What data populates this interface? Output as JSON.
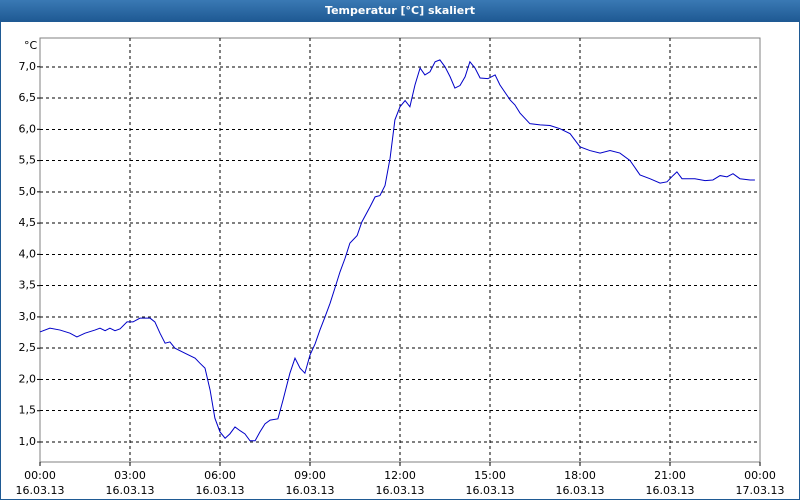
{
  "chart_data": {
    "type": "line",
    "title": "Temperatur [°C] skaliert",
    "y_unit": "°C",
    "xlim": [
      0,
      24
    ],
    "xticks": [
      {
        "value": 0,
        "label": "00:00"
      },
      {
        "value": 3,
        "label": "03:00"
      },
      {
        "value": 6,
        "label": "06:00"
      },
      {
        "value": 9,
        "label": "09:00"
      },
      {
        "value": 12,
        "label": "12:00"
      },
      {
        "value": 15,
        "label": "15:00"
      },
      {
        "value": 18,
        "label": "18:00"
      },
      {
        "value": 21,
        "label": "21:00"
      },
      {
        "value": 24,
        "label": "00:00"
      }
    ],
    "xtick_dates": [
      "16.03.13",
      "16.03.13",
      "16.03.13",
      "16.03.13",
      "16.03.13",
      "16.03.13",
      "16.03.13",
      "16.03.13",
      "17.03.13"
    ],
    "ylim": [
      0.68,
      7.46
    ],
    "yticks": [
      {
        "value": 1,
        "label": "1,0"
      },
      {
        "value": 1.5,
        "label": "1,5"
      },
      {
        "value": 2,
        "label": "2,0"
      },
      {
        "value": 2.5,
        "label": "2,5"
      },
      {
        "value": 3,
        "label": "3,0"
      },
      {
        "value": 3.5,
        "label": "3,5"
      },
      {
        "value": 4,
        "label": "4,0"
      },
      {
        "value": 4.5,
        "label": "4,5"
      },
      {
        "value": 5,
        "label": "5,0"
      },
      {
        "value": 5.5,
        "label": "5,5"
      },
      {
        "value": 6,
        "label": "6,0"
      },
      {
        "value": 6.5,
        "label": "6,5"
      },
      {
        "value": 7,
        "label": "7,0"
      }
    ],
    "grid": true,
    "x": [
      0,
      0.33,
      0.67,
      1,
      1.23,
      1.5,
      1.83,
      2,
      2.17,
      2.33,
      2.5,
      2.67,
      2.9,
      3.1,
      3.33,
      3.67,
      3.83,
      4,
      4.17,
      4.33,
      4.5,
      4.83,
      5.17,
      5.33,
      5.5,
      5.67,
      5.83,
      6,
      6.17,
      6.33,
      6.5,
      6.67,
      6.83,
      7,
      7.17,
      7.33,
      7.5,
      7.67,
      7.93,
      8.1,
      8.33,
      8.5,
      8.67,
      8.83,
      9,
      9.17,
      9.33,
      9.5,
      9.67,
      9.83,
      10,
      10.17,
      10.33,
      10.57,
      10.73,
      11,
      11.17,
      11.33,
      11.5,
      11.67,
      11.83,
      12,
      12.17,
      12.33,
      12.5,
      12.67,
      12.83,
      13,
      13.17,
      13.33,
      13.5,
      13.67,
      13.83,
      14,
      14.17,
      14.33,
      14.5,
      14.67,
      14.93,
      15.17,
      15.33,
      15.67,
      15.83,
      16,
      16.33,
      16.67,
      17,
      17.33,
      17.67,
      18,
      18.33,
      18.67,
      19,
      19.33,
      19.67,
      20,
      20.33,
      20.67,
      20.9,
      21.1,
      21.23,
      21.4,
      21.83,
      22.17,
      22.43,
      22.67,
      22.9,
      23.1,
      23.33,
      23.67,
      23.83
    ],
    "series": [
      {
        "color": "#0000c8",
        "values": [
          2.76,
          2.82,
          2.79,
          2.74,
          2.68,
          2.74,
          2.79,
          2.82,
          2.78,
          2.82,
          2.78,
          2.81,
          2.92,
          2.92,
          2.98,
          2.98,
          2.92,
          2.74,
          2.58,
          2.6,
          2.5,
          2.42,
          2.34,
          2.26,
          2.18,
          1.83,
          1.38,
          1.16,
          1.06,
          1.13,
          1.24,
          1.18,
          1.13,
          1.02,
          1.02,
          1.16,
          1.29,
          1.35,
          1.37,
          1.67,
          2.1,
          2.34,
          2.18,
          2.1,
          2.39,
          2.57,
          2.79,
          3.0,
          3.22,
          3.46,
          3.72,
          3.94,
          4.18,
          4.3,
          4.52,
          4.76,
          4.92,
          4.94,
          5.1,
          5.54,
          6.15,
          6.36,
          6.46,
          6.36,
          6.71,
          6.98,
          6.87,
          6.92,
          7.08,
          7.11,
          7.0,
          6.84,
          6.66,
          6.7,
          6.84,
          7.08,
          6.98,
          6.82,
          6.81,
          6.87,
          6.71,
          6.47,
          6.39,
          6.26,
          6.09,
          6.07,
          6.06,
          6.01,
          5.93,
          5.72,
          5.66,
          5.62,
          5.66,
          5.62,
          5.5,
          5.27,
          5.21,
          5.14,
          5.16,
          5.26,
          5.32,
          5.21,
          5.21,
          5.18,
          5.19,
          5.26,
          5.24,
          5.29,
          5.21,
          5.19,
          5.19
        ]
      }
    ]
  }
}
